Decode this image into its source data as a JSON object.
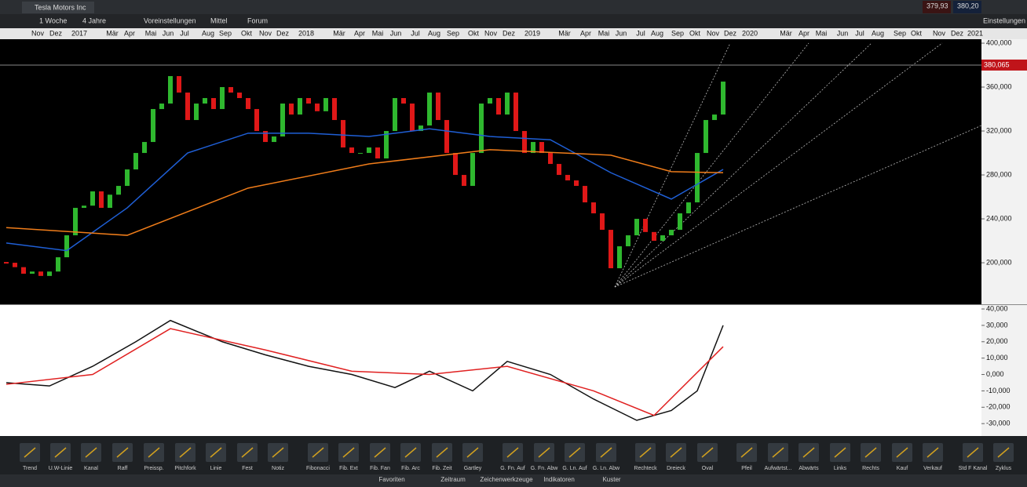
{
  "header": {
    "instrument": "Tesla Motors Inc",
    "period": "1 Woche",
    "range": "4 Jahre",
    "buttons": [
      "Voreinstellungen",
      "Mittel",
      "Forum"
    ],
    "bid": "379,93",
    "ask": "380,20",
    "settings": "Einstellungen"
  },
  "chart_data": [
    {
      "type": "candlestick",
      "x_labels": [
        "Nov",
        "Dez",
        "2017",
        "Mär",
        "Apr",
        "Mai",
        "Jun",
        "Jul",
        "Aug",
        "Sep",
        "Okt",
        "Nov",
        "Dez",
        "2018",
        "Mär",
        "Apr",
        "Mai",
        "Jun",
        "Jul",
        "Aug",
        "Sep",
        "Okt",
        "Nov",
        "Dez",
        "2019",
        "Mär",
        "Apr",
        "Mai",
        "Jun",
        "Jul",
        "Aug",
        "Sep",
        "Okt",
        "Nov",
        "Dez",
        "2020",
        "Mär",
        "Apr",
        "Mai",
        "Jun",
        "Jul",
        "Aug",
        "Sep",
        "Okt",
        "Nov",
        "Dez",
        "2021"
      ],
      "closes": [
        200,
        196,
        190,
        192,
        188,
        192,
        205,
        225,
        250,
        252,
        265,
        250,
        262,
        270,
        285,
        300,
        310,
        340,
        345,
        370,
        355,
        330,
        345,
        350,
        340,
        360,
        355,
        350,
        340,
        320,
        310,
        315,
        345,
        335,
        350,
        345,
        338,
        350,
        330,
        305,
        300,
        300,
        305,
        295,
        320,
        350,
        345,
        320,
        325,
        355,
        330,
        300,
        280,
        270,
        300,
        345,
        350,
        335,
        355,
        320,
        300,
        310,
        300,
        290,
        280,
        275,
        270,
        255,
        245,
        230,
        195,
        215,
        225,
        240,
        228,
        220,
        225,
        230,
        245,
        255,
        300,
        330,
        335,
        365
      ],
      "up_color": "#2fb82f",
      "down_color": "#e01818",
      "series": [
        {
          "color": "#1f5fd6",
          "x": [
            0,
            7,
            14,
            21,
            28,
            35,
            42,
            49,
            56,
            63,
            70,
            77,
            83
          ],
          "values": [
            218,
            211,
            250,
            300,
            318,
            318,
            315,
            322,
            315,
            312,
            282,
            258,
            285
          ]
        },
        {
          "color": "#f07d1a",
          "x": [
            0,
            14,
            28,
            42,
            56,
            70,
            77,
            83
          ],
          "values": [
            232,
            225,
            268,
            290,
            303,
            298,
            283,
            282
          ]
        }
      ],
      "ylim": [
        162.9,
        403.6
      ],
      "yticks": [
        {
          "value": 400,
          "label": "400,000"
        },
        {
          "value": 360,
          "label": "360,000"
        },
        {
          "value": 320,
          "label": "320,000"
        },
        {
          "value": 280,
          "label": "280,000"
        },
        {
          "value": 240,
          "label": "240,000"
        },
        {
          "value": 200,
          "label": "200,000"
        }
      ],
      "current_price": {
        "value": 380.065,
        "label": "380,065"
      }
    },
    {
      "type": "line",
      "series": [
        {
          "color": "#111111",
          "x": [
            0,
            5,
            10,
            15,
            19,
            25,
            30,
            35,
            40,
            45,
            49,
            54,
            58,
            63,
            68,
            73,
            77,
            80,
            83
          ],
          "values": [
            -5,
            -7,
            5,
            20,
            33,
            20,
            12,
            5,
            0,
            -8,
            2,
            -10,
            8,
            0,
            -15,
            -28,
            -22,
            -10,
            30
          ]
        },
        {
          "color": "#e02020",
          "x": [
            0,
            10,
            19,
            30,
            40,
            49,
            58,
            68,
            75,
            83
          ],
          "values": [
            -6,
            0,
            28,
            15,
            2,
            0,
            5,
            -10,
            -25,
            17
          ]
        }
      ],
      "ylim": [
        -37.1,
        42.4
      ],
      "yticks": [
        {
          "value": 40,
          "label": "40,000"
        },
        {
          "value": 30,
          "label": "30,000"
        },
        {
          "value": 20,
          "label": "20,000"
        },
        {
          "value": 10,
          "label": "10,000"
        },
        {
          "value": 0,
          "label": "0,000"
        },
        {
          "value": -10,
          "label": "-10,000"
        },
        {
          "value": -20,
          "label": "-20,000"
        },
        {
          "value": -30,
          "label": "-30,000"
        }
      ]
    }
  ],
  "tools": [
    "Trend",
    "U.W-Linie",
    "Kanal",
    "Raff",
    "Preissp.",
    "Pitchfork",
    "Linie",
    "Fest",
    "Notiz",
    "Fibonacci",
    "Fib. Ext",
    "Fib. Fan",
    "Fib. Arc",
    "Fib. Zeit",
    "Gartley",
    "G. Fn. Auf",
    "G. Fn. Abw",
    "G. Ln. Auf",
    "G. Ln. Abw",
    "Rechteck",
    "Dreieck",
    "Oval",
    "Pfeil",
    "Aufwärtst...",
    "Abwärts",
    "Links",
    "Rechts",
    "Kauf",
    "Verkauf",
    "Std F Kanal",
    "Zyklus"
  ],
  "tabs": [
    "Favoriten",
    "Zeitraum",
    "Zeichenwerkzeuge",
    "Indikatoren",
    "Kuster"
  ]
}
